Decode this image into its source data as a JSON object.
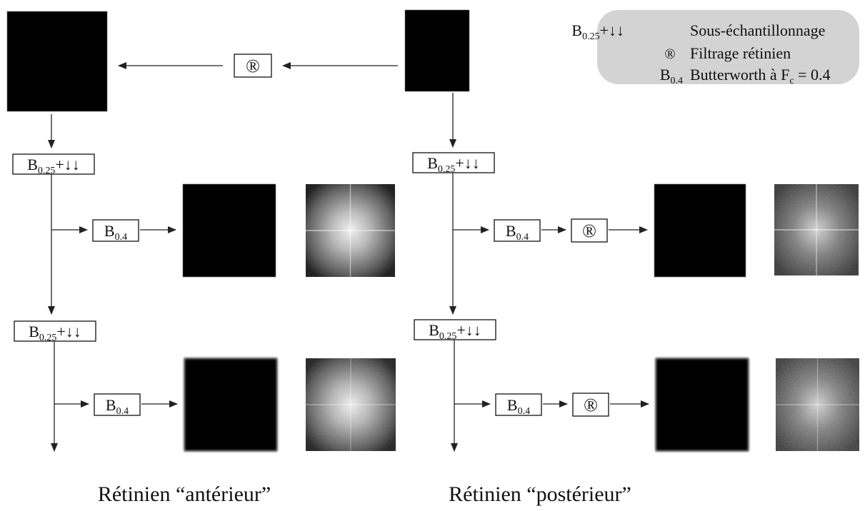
{
  "legend": {
    "downsample": {
      "symbol": "B",
      "subscript": "0.25",
      "suffix": "+↓↓",
      "text": "Sous-échantillonnage"
    },
    "retinal": {
      "symbol": "®",
      "text": "Filtrage rétinien"
    },
    "butterworth": {
      "symbol": "B",
      "subscript": "0.4",
      "text_before": "Butterworth à F",
      "text_sub": "c",
      "text_after": " = 0.4"
    }
  },
  "blocks": {
    "retinal_symbol": "®",
    "downsample": {
      "symbol": "B",
      "subscript": "0.25",
      "suffix": "+↓↓"
    },
    "butterworth": {
      "symbol": "B",
      "subscript": "0.4"
    }
  },
  "captions": {
    "left": "Rétinien “antérieur”",
    "right": "Rétinien “postérieur”"
  },
  "colors": {
    "legend_fill": "#d3d3d3",
    "sky_original": "#ececec",
    "sky_filtered": "#8f8f8f",
    "spectrum_center": "#f0f0f0"
  }
}
